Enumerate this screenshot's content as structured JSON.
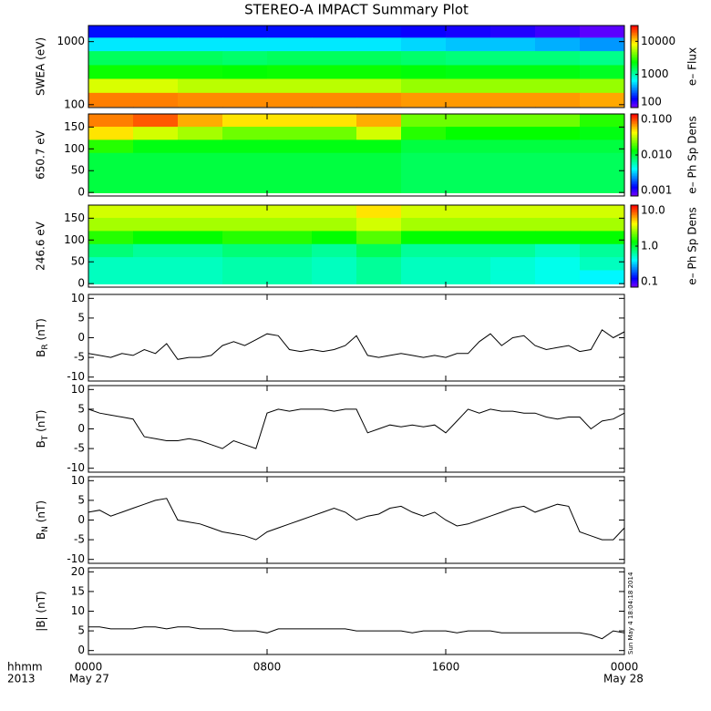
{
  "title": "STEREO-A IMPACT Summary Plot",
  "x_axis": {
    "xlim": [
      0,
      24
    ],
    "xticks": [
      {
        "value": 0,
        "label": "0000"
      },
      {
        "value": 8,
        "label": "0800"
      },
      {
        "value": 16,
        "label": "1600"
      },
      {
        "value": 24,
        "label": "0000"
      }
    ],
    "date_labels": [
      "May 27",
      "May 28"
    ],
    "row_labels": [
      "hhmm",
      "2013"
    ]
  },
  "stamp": "Sun May 4 18:04:18 2014",
  "chart_data": [
    {
      "type": "heatmap",
      "ylabel": "SWEA (eV)",
      "log_y": true,
      "ylim": [
        90,
        1800
      ],
      "yticks": [
        100,
        1000
      ],
      "x": [
        1,
        3,
        5,
        7,
        9,
        11,
        13,
        15,
        17,
        19,
        21,
        23
      ],
      "y": [
        1500,
        900,
        550,
        330,
        200,
        120
      ],
      "values": [
        [
          200,
          200,
          200,
          200,
          200,
          200,
          200,
          180,
          170,
          160,
          140,
          120
        ],
        [
          600,
          600,
          600,
          600,
          600,
          600,
          600,
          550,
          500,
          500,
          450,
          400
        ],
        [
          1500,
          1500,
          1500,
          1400,
          1500,
          1500,
          1500,
          1400,
          1300,
          1300,
          1300,
          1200
        ],
        [
          2500,
          2500,
          2500,
          2400,
          2500,
          2500,
          2500,
          2300,
          2200,
          2200,
          2200,
          2000
        ],
        [
          7000,
          7000,
          6000,
          6000,
          6000,
          6000,
          6000,
          5000,
          5000,
          5000,
          5000,
          5000
        ],
        [
          16000,
          16000,
          15000,
          15000,
          15000,
          15000,
          15000,
          14000,
          14000,
          14000,
          14000,
          13000
        ]
      ],
      "clabel": "e– Flux",
      "clim": [
        100,
        30000
      ],
      "cticks": [
        100,
        1000,
        10000
      ]
    },
    {
      "type": "heatmap",
      "ylabel": "650.7 eV",
      "log_y": false,
      "ylim": [
        -8,
        180
      ],
      "yticks": [
        0,
        50,
        100,
        150
      ],
      "x": [
        1,
        3,
        5,
        7,
        9,
        11,
        13,
        15,
        17,
        19,
        21,
        23
      ],
      "y": [
        165,
        135,
        105,
        75,
        45,
        15
      ],
      "values": [
        [
          0.06,
          0.07,
          0.05,
          0.04,
          0.04,
          0.04,
          0.05,
          0.02,
          0.02,
          0.02,
          0.02,
          0.015
        ],
        [
          0.04,
          0.03,
          0.025,
          0.02,
          0.02,
          0.02,
          0.03,
          0.015,
          0.013,
          0.013,
          0.013,
          0.012
        ],
        [
          0.015,
          0.012,
          0.012,
          0.012,
          0.012,
          0.012,
          0.012,
          0.01,
          0.01,
          0.01,
          0.01,
          0.01
        ],
        [
          0.01,
          0.01,
          0.01,
          0.01,
          0.01,
          0.01,
          0.01,
          0.009,
          0.009,
          0.009,
          0.009,
          0.009
        ],
        [
          0.01,
          0.01,
          0.01,
          0.01,
          0.01,
          0.01,
          0.01,
          0.009,
          0.009,
          0.009,
          0.009,
          0.009
        ],
        [
          0.01,
          0.01,
          0.01,
          0.01,
          0.01,
          0.01,
          0.01,
          0.009,
          0.009,
          0.009,
          0.009,
          0.009
        ]
      ],
      "clabel": "e– Ph Sp Dens",
      "clim": [
        0.001,
        0.1
      ],
      "cticks": [
        {
          "value": 0.001,
          "label": "0.001"
        },
        {
          "value": 0.01,
          "label": "0.010"
        },
        {
          "value": 0.1,
          "label": "0.100"
        }
      ]
    },
    {
      "type": "heatmap",
      "ylabel": "246.6 eV",
      "log_y": false,
      "ylim": [
        -8,
        180
      ],
      "yticks": [
        0,
        50,
        100,
        150
      ],
      "x": [
        1,
        3,
        5,
        7,
        9,
        11,
        13,
        15,
        17,
        19,
        21,
        23
      ],
      "y": [
        165,
        135,
        105,
        75,
        45,
        15
      ],
      "values": [
        [
          3,
          3,
          3,
          3,
          3,
          3,
          4,
          3,
          3,
          3,
          3,
          3
        ],
        [
          2.5,
          2.5,
          2.5,
          2.5,
          2.5,
          2.5,
          3,
          2.5,
          2.5,
          2.5,
          2.5,
          2.5
        ],
        [
          1.5,
          1.3,
          1.3,
          1.5,
          1.5,
          1.3,
          1.8,
          1.3,
          1.3,
          1.3,
          1.3,
          1.3
        ],
        [
          0.8,
          0.7,
          0.7,
          0.8,
          0.8,
          0.7,
          0.9,
          0.7,
          0.7,
          0.7,
          0.6,
          0.7
        ],
        [
          0.6,
          0.6,
          0.6,
          0.65,
          0.65,
          0.6,
          0.7,
          0.6,
          0.6,
          0.55,
          0.5,
          0.6
        ],
        [
          0.6,
          0.6,
          0.6,
          0.65,
          0.65,
          0.6,
          0.7,
          0.6,
          0.6,
          0.55,
          0.5,
          0.45
        ]
      ],
      "clabel": "e– Ph Sp Dens",
      "clim": [
        0.1,
        10
      ],
      "cticks": [
        {
          "value": 0.1,
          "label": "0.1"
        },
        {
          "value": 1,
          "label": "1.0"
        },
        {
          "value": 10,
          "label": "10.0"
        }
      ]
    },
    {
      "type": "line",
      "ylabel": [
        "B",
        "R",
        " (nT)"
      ],
      "ylim": [
        -11,
        11
      ],
      "yticks": [
        -10,
        -5,
        0,
        5,
        10
      ],
      "color": "#000000",
      "x": [
        0,
        0.5,
        1,
        1.5,
        2,
        2.5,
        3,
        3.5,
        4,
        4.5,
        5,
        5.5,
        6,
        6.5,
        7,
        7.5,
        8,
        8.5,
        9,
        9.5,
        10,
        10.5,
        11,
        11.5,
        12,
        12.5,
        13,
        13.5,
        14,
        14.5,
        15,
        15.5,
        16,
        16.5,
        17,
        17.5,
        18,
        18.5,
        19,
        19.5,
        20,
        20.5,
        21,
        21.5,
        22,
        22.5,
        23,
        23.5,
        24
      ],
      "values": [
        -4,
        -4.5,
        -5,
        -4,
        -4.5,
        -3,
        -4,
        -1.5,
        -5.5,
        -5,
        -5,
        -4.5,
        -2,
        -1,
        -2,
        -0.5,
        1,
        0.5,
        -3,
        -3.5,
        -3,
        -3.5,
        -3,
        -2,
        0.5,
        -4.5,
        -5,
        -4.5,
        -4,
        -4.5,
        -5,
        -4.5,
        -5,
        -4,
        -4,
        -1,
        1,
        -2,
        0,
        0.5,
        -2,
        -3,
        -2.5,
        -2,
        -3.5,
        -3,
        2,
        0,
        1.5
      ]
    },
    {
      "type": "line",
      "ylabel": [
        "B",
        "T",
        " (nT)"
      ],
      "ylim": [
        -11,
        11
      ],
      "yticks": [
        -10,
        -5,
        0,
        5,
        10
      ],
      "color": "#000000",
      "x": [
        0,
        0.5,
        1,
        1.5,
        2,
        2.5,
        3,
        3.5,
        4,
        4.5,
        5,
        5.5,
        6,
        6.5,
        7,
        7.5,
        8,
        8.5,
        9,
        9.5,
        10,
        10.5,
        11,
        11.5,
        12,
        12.5,
        13,
        13.5,
        14,
        14.5,
        15,
        15.5,
        16,
        16.5,
        17,
        17.5,
        18,
        18.5,
        19,
        19.5,
        20,
        20.5,
        21,
        21.5,
        22,
        22.5,
        23,
        23.5,
        24
      ],
      "values": [
        5,
        4,
        3.5,
        3,
        2.5,
        -2,
        -2.5,
        -3,
        -3,
        -2.5,
        -3,
        -4,
        -5,
        -3,
        -4,
        -5,
        4,
        5,
        4.5,
        5,
        5,
        5,
        4.5,
        5,
        5,
        -1,
        0,
        1,
        0.5,
        1,
        0.5,
        1,
        -1,
        2,
        5,
        4,
        5,
        4.5,
        4.5,
        4,
        4,
        3,
        2.5,
        3,
        3,
        0,
        2,
        2.5,
        4
      ]
    },
    {
      "type": "line",
      "ylabel": [
        "B",
        "N",
        " (nT)"
      ],
      "ylim": [
        -11,
        11
      ],
      "yticks": [
        -10,
        -5,
        0,
        5,
        10
      ],
      "color": "#000000",
      "x": [
        0,
        0.5,
        1,
        1.5,
        2,
        2.5,
        3,
        3.5,
        4,
        4.5,
        5,
        5.5,
        6,
        6.5,
        7,
        7.5,
        8,
        8.5,
        9,
        9.5,
        10,
        10.5,
        11,
        11.5,
        12,
        12.5,
        13,
        13.5,
        14,
        14.5,
        15,
        15.5,
        16,
        16.5,
        17,
        17.5,
        18,
        18.5,
        19,
        19.5,
        20,
        20.5,
        21,
        21.5,
        22,
        22.5,
        23,
        23.5,
        24
      ],
      "values": [
        2,
        2.5,
        1,
        2,
        3,
        4,
        5,
        5.5,
        0,
        -0.5,
        -1,
        -2,
        -3,
        -3.5,
        -4,
        -5,
        -3,
        -2,
        -1,
        0,
        1,
        2,
        3,
        2,
        0,
        1,
        1.5,
        3,
        3.5,
        2,
        1,
        2,
        0,
        -1.5,
        -1,
        0,
        1,
        2,
        3,
        3.5,
        2,
        3,
        4,
        3.5,
        -3,
        -4,
        -5,
        -5,
        -2
      ]
    },
    {
      "type": "line",
      "ylabel": [
        "|B|",
        "",
        " (nT)"
      ],
      "ylim": [
        -1,
        21
      ],
      "yticks": [
        0,
        5,
        10,
        15,
        20
      ],
      "color": "#000000",
      "x": [
        0,
        0.5,
        1,
        1.5,
        2,
        2.5,
        3,
        3.5,
        4,
        4.5,
        5,
        5.5,
        6,
        6.5,
        7,
        7.5,
        8,
        8.5,
        9,
        9.5,
        10,
        10.5,
        11,
        11.5,
        12,
        12.5,
        13,
        13.5,
        14,
        14.5,
        15,
        15.5,
        16,
        16.5,
        17,
        17.5,
        18,
        18.5,
        19,
        19.5,
        20,
        20.5,
        21,
        21.5,
        22,
        22.5,
        23,
        23.5,
        24
      ],
      "values": [
        6,
        6,
        5.5,
        5.5,
        5.5,
        6,
        6,
        5.5,
        6,
        6,
        5.5,
        5.5,
        5.5,
        5,
        5,
        5,
        4.5,
        5.5,
        5.5,
        5.5,
        5.5,
        5.5,
        5.5,
        5.5,
        5,
        5,
        5,
        5,
        5,
        4.5,
        5,
        5,
        5,
        4.5,
        5,
        5,
        5,
        4.5,
        4.5,
        4.5,
        4.5,
        4.5,
        4.5,
        4.5,
        4.5,
        4,
        3,
        5,
        4.5
      ]
    }
  ]
}
